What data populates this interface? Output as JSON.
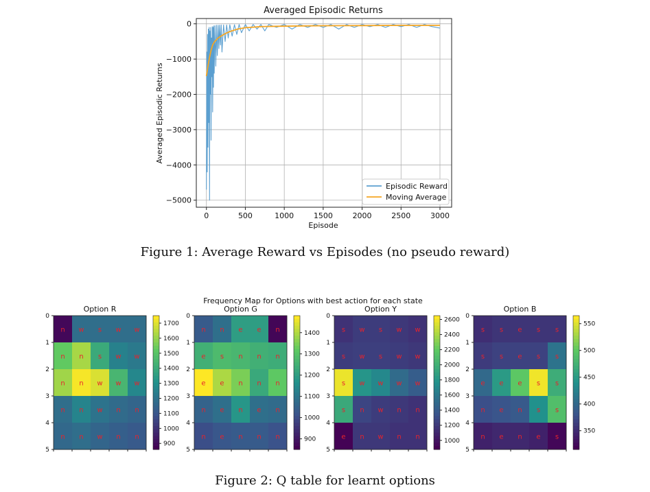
{
  "figure1": {
    "caption": "Figure 1: Average Reward vs Episodes (no pseudo reward)",
    "chart_data": {
      "type": "line",
      "title": "Averaged Episodic Returns",
      "xlabel": "Episode",
      "ylabel": "Averaged Episodic Returns",
      "xlim": [
        -130,
        3150
      ],
      "ylim": [
        -5200,
        150
      ],
      "xticks": [
        0,
        500,
        1000,
        1500,
        2000,
        2500,
        3000
      ],
      "yticks": [
        0,
        -1000,
        -2000,
        -3000,
        -4000,
        -5000
      ],
      "ytick_labels": [
        "0",
        "−1000",
        "−2000",
        "−3000",
        "−4000",
        "−5000"
      ],
      "grid": true,
      "legend_position": "lower right",
      "series": [
        {
          "name": "Episodic Reward",
          "color": "#5b9fd0",
          "x": [
            0,
            5,
            10,
            15,
            20,
            25,
            30,
            35,
            40,
            45,
            50,
            55,
            60,
            65,
            70,
            75,
            80,
            85,
            90,
            95,
            100,
            110,
            120,
            130,
            140,
            150,
            160,
            170,
            180,
            190,
            200,
            220,
            240,
            260,
            280,
            300,
            330,
            360,
            390,
            420,
            450,
            500,
            550,
            600,
            650,
            700,
            750,
            800,
            900,
            1000,
            1100,
            1200,
            1300,
            1400,
            1500,
            1600,
            1700,
            1800,
            1900,
            2000,
            2100,
            2200,
            2300,
            2400,
            2500,
            2600,
            2700,
            2800,
            2900,
            3000
          ],
          "y": [
            -4700,
            -800,
            -4200,
            -300,
            -3500,
            -150,
            -2800,
            -100,
            -5000,
            -200,
            -2000,
            -100,
            -3300,
            -400,
            -1500,
            -80,
            -2500,
            -100,
            -1800,
            -60,
            -1400,
            -50,
            -1200,
            -40,
            -900,
            -40,
            -700,
            -35,
            -600,
            -30,
            -800,
            -30,
            -500,
            -30,
            -400,
            -25,
            -350,
            -25,
            -300,
            -20,
            -250,
            -20,
            -200,
            -20,
            -150,
            -20,
            -200,
            -20,
            -100,
            -20,
            -150,
            -20,
            -100,
            -20,
            -100,
            -20,
            -150,
            -20,
            -100,
            -20,
            -80,
            -20,
            -100,
            -20,
            -80,
            -20,
            -100,
            -20,
            -80,
            -120
          ]
        },
        {
          "name": "Moving Average",
          "color": "#f5a623",
          "x": [
            0,
            20,
            40,
            60,
            80,
            100,
            150,
            200,
            250,
            300,
            400,
            500,
            700,
            900,
            1200,
            1500,
            2000,
            2500,
            3000
          ],
          "y": [
            -1480,
            -1200,
            -950,
            -750,
            -600,
            -520,
            -400,
            -330,
            -270,
            -220,
            -150,
            -110,
            -80,
            -70,
            -60,
            -55,
            -50,
            -45,
            -45
          ]
        }
      ]
    }
  },
  "figure2": {
    "caption": "Figure 2: Q table for learnt options",
    "suptitle": "Frequency Map for Options with best action for each state",
    "chart_data": [
      {
        "type": "heatmap",
        "title": "Option R",
        "xticks": [
          "0",
          "1",
          "2",
          "3",
          "4",
          "5"
        ],
        "yticks": [
          "0",
          "1",
          "2",
          "3",
          "4",
          "5"
        ],
        "colorbar_ticks": [
          "1700",
          "1600",
          "1500",
          "1400",
          "1300",
          "1200",
          "1100",
          "1000",
          "900"
        ],
        "vmin": 860,
        "vmax": 1750,
        "values": [
          [
            880,
            1180,
            1180,
            1180,
            1180
          ],
          [
            1530,
            1630,
            1400,
            1250,
            1220
          ],
          [
            1620,
            1740,
            1700,
            1450,
            1270
          ],
          [
            1180,
            1260,
            1200,
            1170,
            1150
          ],
          [
            1160,
            1180,
            1150,
            1130,
            1110
          ]
        ],
        "actions": [
          [
            "n",
            "w",
            "s",
            "w",
            "w"
          ],
          [
            "n",
            "n",
            "s",
            "w",
            "w"
          ],
          [
            "n",
            "n",
            "w",
            "w",
            "w"
          ],
          [
            "n",
            "n",
            "w",
            "n",
            "n"
          ],
          [
            "n",
            "n",
            "w",
            "n",
            "n"
          ]
        ]
      },
      {
        "type": "heatmap",
        "title": "Option G",
        "xticks": [
          "0",
          "1",
          "2",
          "3",
          "4",
          "5"
        ],
        "yticks": [
          "0",
          "1",
          "2",
          "3",
          "4",
          "5"
        ],
        "colorbar_ticks": [
          "1400",
          "1300",
          "1200",
          "1100",
          "1000",
          "900"
        ],
        "vmin": 850,
        "vmax": 1480,
        "values": [
          [
            1030,
            1080,
            1200,
            1200,
            860
          ],
          [
            1250,
            1280,
            1270,
            1250,
            1240
          ],
          [
            1480,
            1400,
            1350,
            1230,
            1320
          ],
          [
            1050,
            1080,
            1180,
            1080,
            1070
          ],
          [
            1000,
            1020,
            1030,
            1030,
            1010
          ]
        ],
        "actions": [
          [
            "n",
            "n",
            "e",
            "e",
            "n"
          ],
          [
            "e",
            "s",
            "n",
            "n",
            "n"
          ],
          [
            "e",
            "e",
            "n",
            "n",
            "n"
          ],
          [
            "n",
            "e",
            "n",
            "e",
            "n"
          ],
          [
            "n",
            "e",
            "n",
            "n",
            "n"
          ]
        ]
      },
      {
        "type": "heatmap",
        "title": "Option Y",
        "xticks": [
          "0",
          "1",
          "2",
          "3",
          "4",
          "5"
        ],
        "yticks": [
          "0",
          "1",
          "2",
          "3",
          "4",
          "5"
        ],
        "colorbar_ticks": [
          "2600",
          "2400",
          "2200",
          "2000",
          "1800",
          "1600",
          "1400",
          "1200",
          "1000"
        ],
        "vmin": 880,
        "vmax": 2650,
        "values": [
          [
            1150,
            1200,
            1200,
            1180,
            1150
          ],
          [
            1200,
            1220,
            1220,
            1200,
            1180
          ],
          [
            2600,
            1800,
            1700,
            1500,
            1400
          ],
          [
            1950,
            1250,
            1200,
            1180,
            1150
          ],
          [
            890,
            1180,
            1180,
            1150,
            1150
          ]
        ],
        "actions": [
          [
            "s",
            "w",
            "s",
            "w",
            "w"
          ],
          [
            "s",
            "w",
            "s",
            "w",
            "w"
          ],
          [
            "s",
            "w",
            "w",
            "w",
            "w"
          ],
          [
            "s",
            "n",
            "w",
            "n",
            "n"
          ],
          [
            "e",
            "n",
            "w",
            "n",
            "n"
          ]
        ]
      },
      {
        "type": "heatmap",
        "title": "Option B",
        "xticks": [
          "0",
          "1",
          "2",
          "3",
          "4",
          "5"
        ],
        "yticks": [
          "0",
          "1",
          "2",
          "3",
          "4",
          "5"
        ],
        "colorbar_ticks": [
          "550",
          "500",
          "450",
          "400",
          "350"
        ],
        "vmin": 315,
        "vmax": 565,
        "values": [
          [
            350,
            355,
            355,
            355,
            355
          ],
          [
            360,
            365,
            365,
            365,
            410
          ],
          [
            400,
            450,
            500,
            560,
            470
          ],
          [
            375,
            380,
            385,
            440,
            490
          ],
          [
            340,
            345,
            345,
            340,
            320
          ]
        ],
        "actions": [
          [
            "s",
            "s",
            "e",
            "s",
            "s"
          ],
          [
            "s",
            "s",
            "e",
            "s",
            "s"
          ],
          [
            "e",
            "e",
            "e",
            "s",
            "s"
          ],
          [
            "n",
            "e",
            "n",
            "s",
            "s"
          ],
          [
            "n",
            "e",
            "n",
            "e",
            "s"
          ]
        ]
      }
    ]
  }
}
